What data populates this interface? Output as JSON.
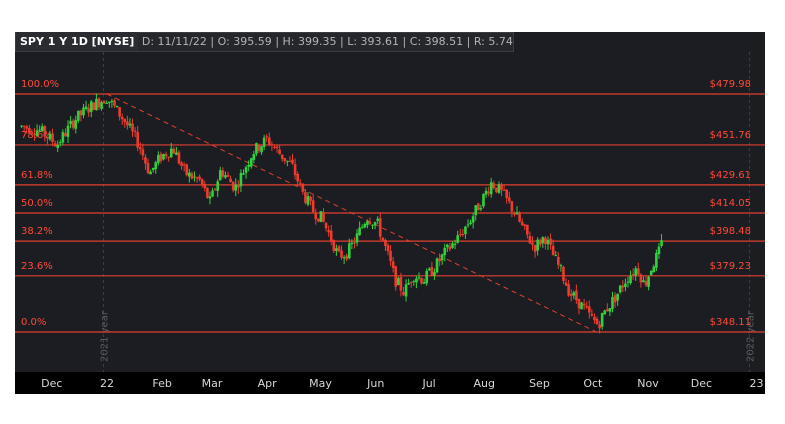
{
  "header": {
    "symbol": "SPY 1 Y 1D [NYSE]",
    "date": "D: 11/11/22",
    "open": "O: 395.59",
    "high": "H: 399.35",
    "low": "L: 393.61",
    "close": "C: 398.51",
    "range": "R: 5.74"
  },
  "chart_data": {
    "type": "candlestick",
    "ylim": [
      338,
      492
    ],
    "xlim_days": [
      0,
      384
    ],
    "fib_levels": [
      {
        "pct": "100.0%",
        "price": "$479.98",
        "value": 479.98
      },
      {
        "pct": "78.6%",
        "price": "$451.76",
        "value": 451.76
      },
      {
        "pct": "61.8%",
        "price": "$429.61",
        "value": 429.61
      },
      {
        "pct": "50.0%",
        "price": "$414.05",
        "value": 414.05
      },
      {
        "pct": "38.2%",
        "price": "$398.48",
        "value": 398.48
      },
      {
        "pct": "23.6%",
        "price": "$379.23",
        "value": 379.23
      },
      {
        "pct": "0.0%",
        "price": "$348.11",
        "value": 348.11
      }
    ],
    "x_ticks": [
      {
        "label": "Dec",
        "day": 17
      },
      {
        "label": "22",
        "day": 48
      },
      {
        "label": "Feb",
        "day": 79
      },
      {
        "label": "Mar",
        "day": 107
      },
      {
        "label": "Apr",
        "day": 138
      },
      {
        "label": "May",
        "day": 168
      },
      {
        "label": "Jun",
        "day": 199
      },
      {
        "label": "Jul",
        "day": 229
      },
      {
        "label": "Aug",
        "day": 260
      },
      {
        "label": "Sep",
        "day": 291
      },
      {
        "label": "Oct",
        "day": 321
      },
      {
        "label": "Nov",
        "day": 352
      },
      {
        "label": "Dec",
        "day": 382
      },
      {
        "label": "23",
        "day": 413
      }
    ],
    "year_markers": [
      {
        "label": "2021 year",
        "day": 46
      },
      {
        "label": "2022 year",
        "day": 409
      }
    ],
    "trendline": {
      "from": {
        "day": 48,
        "price": 479.98
      },
      "to": {
        "day": 323,
        "price": 348.11
      }
    },
    "path": [
      [
        0,
        462,
        463
      ],
      [
        10,
        460,
        460
      ],
      [
        20,
        452,
        451
      ],
      [
        30,
        466,
        467
      ],
      [
        40,
        474,
        475
      ],
      [
        48,
        478,
        477
      ],
      [
        58,
        465,
        466
      ],
      [
        66,
        452,
        448
      ],
      [
        72,
        436,
        434
      ],
      [
        78,
        445,
        447
      ],
      [
        85,
        450,
        448
      ],
      [
        92,
        436,
        439
      ],
      [
        100,
        432,
        429
      ],
      [
        106,
        420,
        425
      ],
      [
        112,
        438,
        437
      ],
      [
        120,
        428,
        425
      ],
      [
        130,
        448,
        447
      ],
      [
        138,
        455,
        457
      ],
      [
        145,
        447,
        446
      ],
      [
        152,
        440,
        442
      ],
      [
        158,
        425,
        422
      ],
      [
        164,
        415,
        416
      ],
      [
        168,
        412,
        412
      ],
      [
        174,
        400,
        396
      ],
      [
        178,
        390,
        391
      ],
      [
        183,
        392,
        394
      ],
      [
        188,
        400,
        398
      ],
      [
        194,
        412,
        415
      ],
      [
        200,
        408,
        410
      ],
      [
        206,
        390,
        388
      ],
      [
        210,
        377,
        375
      ],
      [
        215,
        370,
        368
      ],
      [
        220,
        380,
        381
      ],
      [
        226,
        377,
        380
      ],
      [
        232,
        384,
        386
      ],
      [
        238,
        392,
        394
      ],
      [
        245,
        400,
        401
      ],
      [
        252,
        410,
        412
      ],
      [
        258,
        420,
        422
      ],
      [
        264,
        431,
        430
      ],
      [
        270,
        425,
        426
      ],
      [
        276,
        416,
        414
      ],
      [
        282,
        405,
        402
      ],
      [
        288,
        395,
        393
      ],
      [
        294,
        401,
        402
      ],
      [
        298,
        392,
        393
      ],
      [
        303,
        382,
        380
      ],
      [
        308,
        370,
        368
      ],
      [
        312,
        366,
        365
      ],
      [
        316,
        361,
        362
      ],
      [
        320,
        356,
        357
      ],
      [
        324,
        352,
        354
      ],
      [
        328,
        360,
        362
      ],
      [
        334,
        368,
        371
      ],
      [
        340,
        378,
        381
      ],
      [
        346,
        384,
        381
      ],
      [
        350,
        374,
        377
      ],
      [
        354,
        384,
        386
      ],
      [
        358,
        392,
        396
      ],
      [
        360,
        396,
        399
      ]
    ]
  }
}
